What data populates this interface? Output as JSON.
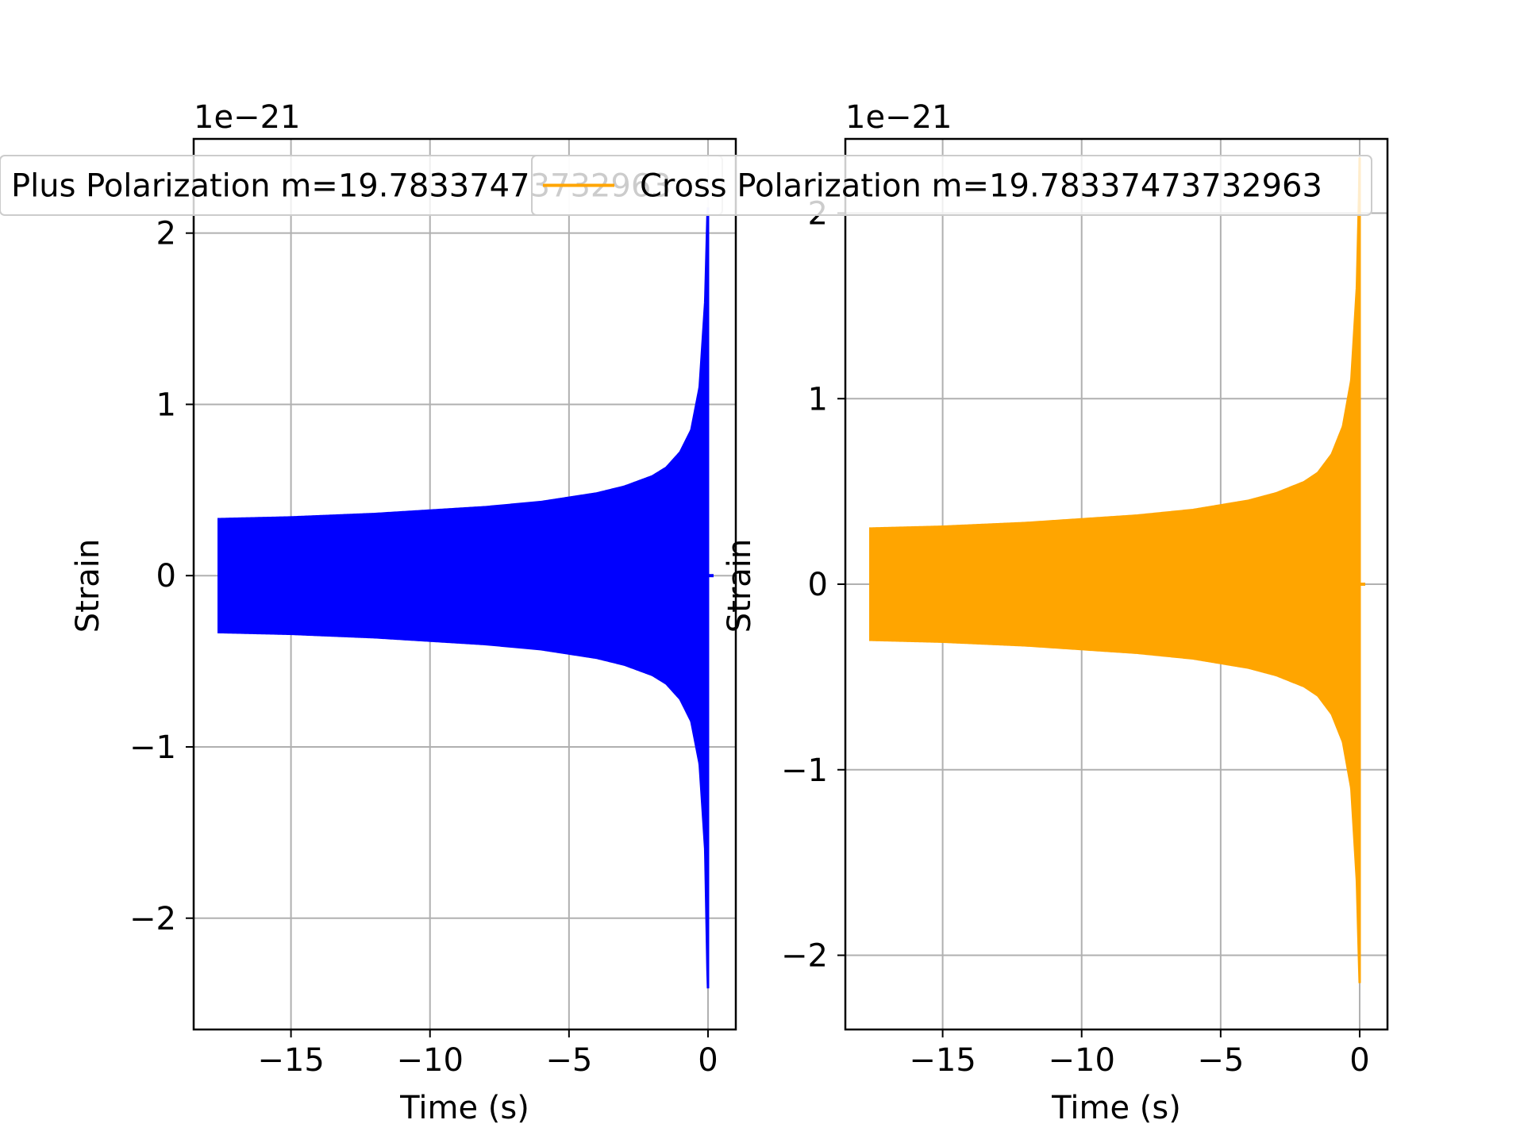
{
  "chart_data": [
    {
      "type": "line",
      "title": "",
      "xlabel": "Time (s)",
      "ylabel": "Strain",
      "offset_label": "1e−21",
      "xlim": [
        -18.5,
        1.0
      ],
      "ylim": [
        -2.65,
        2.55
      ],
      "xticks": [
        -15,
        -10,
        -5,
        0
      ],
      "xtick_labels": [
        "−15",
        "−10",
        "−5",
        "0"
      ],
      "yticks": [
        -2,
        -1,
        0,
        1,
        2
      ],
      "ytick_labels": [
        "−2",
        "−1",
        "0",
        "1",
        "2"
      ],
      "grid": true,
      "legend_position": "top-left",
      "series": [
        {
          "name": "Plus Polarization m=19.78337473732963",
          "color": "#0000ff",
          "x_range": [
            -17.6,
            0.0
          ],
          "envelope_times": [
            -17.6,
            -15,
            -12,
            -10,
            -8,
            -6,
            -4,
            -3,
            -2,
            -1.5,
            -1.0,
            -0.6,
            -0.3,
            -0.1,
            -0.02,
            0.0
          ],
          "envelope_upper": [
            0.33,
            0.34,
            0.36,
            0.38,
            0.4,
            0.43,
            0.48,
            0.52,
            0.58,
            0.63,
            0.72,
            0.85,
            1.1,
            1.6,
            2.1,
            2.15
          ],
          "envelope_lower": [
            -0.33,
            -0.34,
            -0.36,
            -0.38,
            -0.4,
            -0.43,
            -0.48,
            -0.52,
            -0.58,
            -0.63,
            -0.72,
            -0.85,
            -1.1,
            -1.6,
            -2.3,
            -2.41
          ]
        }
      ]
    },
    {
      "type": "line",
      "title": "",
      "xlabel": "Time (s)",
      "ylabel": "Strain",
      "offset_label": "1e−21",
      "xlim": [
        -18.5,
        1.0
      ],
      "ylim": [
        -2.4,
        2.4
      ],
      "xticks": [
        -15,
        -10,
        -5,
        0
      ],
      "xtick_labels": [
        "−15",
        "−10",
        "−5",
        "0"
      ],
      "yticks": [
        -2,
        -1,
        0,
        1,
        2
      ],
      "ytick_labels": [
        "−2",
        "−1",
        "0",
        "1",
        "2"
      ],
      "grid": true,
      "legend_position": "top-center",
      "series": [
        {
          "name": "Cross Polarization m=19.78337473732963",
          "color": "#ffa500",
          "x_range": [
            -17.6,
            0.0
          ],
          "envelope_times": [
            -17.6,
            -15,
            -12,
            -10,
            -8,
            -6,
            -4,
            -3,
            -2,
            -1.5,
            -1.0,
            -0.6,
            -0.3,
            -0.1,
            -0.02,
            0.0
          ],
          "envelope_upper": [
            0.3,
            0.31,
            0.33,
            0.35,
            0.37,
            0.4,
            0.45,
            0.49,
            0.55,
            0.6,
            0.7,
            0.85,
            1.1,
            1.6,
            2.1,
            2.3
          ],
          "envelope_lower": [
            -0.3,
            -0.31,
            -0.33,
            -0.35,
            -0.37,
            -0.4,
            -0.45,
            -0.49,
            -0.55,
            -0.6,
            -0.7,
            -0.85,
            -1.1,
            -1.6,
            -2.05,
            -2.15
          ]
        }
      ]
    }
  ]
}
